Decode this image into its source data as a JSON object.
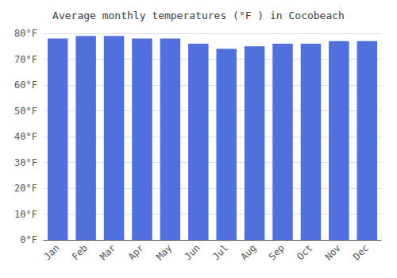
{
  "chart_data": {
    "type": "bar",
    "title": "Average monthly temperatures (°F ) in Cocobeach",
    "categories": [
      "Jan",
      "Feb",
      "Mar",
      "Apr",
      "May",
      "Jun",
      "Jul",
      "Aug",
      "Sep",
      "Oct",
      "Nov",
      "Dec"
    ],
    "values": [
      78,
      79,
      79,
      78,
      78,
      76,
      74,
      75,
      76,
      76,
      77,
      77
    ],
    "ylim": [
      0,
      80
    ],
    "yticks": [
      {
        "value": 0,
        "label": "0°F"
      },
      {
        "value": 10,
        "label": "10°F"
      },
      {
        "value": 20,
        "label": "20°F"
      },
      {
        "value": 30,
        "label": "30°F"
      },
      {
        "value": 40,
        "label": "40°F"
      },
      {
        "value": 50,
        "label": "50°F"
      },
      {
        "value": 60,
        "label": "60°F"
      },
      {
        "value": 70,
        "label": "70°F"
      },
      {
        "value": 80,
        "label": "80°F"
      }
    ],
    "grid": true
  }
}
